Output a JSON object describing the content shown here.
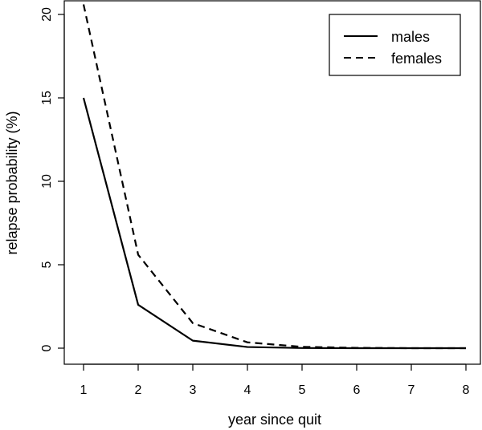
{
  "chart_data": {
    "type": "line",
    "title": "",
    "xlabel": "year since quit",
    "ylabel": "relapse probability (%)",
    "x": [
      1,
      2,
      3,
      4,
      5,
      6,
      7,
      8
    ],
    "xlim": [
      1,
      8
    ],
    "ylim": [
      0,
      20
    ],
    "x_ticks": [
      "1",
      "2",
      "3",
      "4",
      "5",
      "6",
      "7",
      "8"
    ],
    "y_ticks": [
      "0",
      "5",
      "10",
      "15",
      "20"
    ],
    "grid": false,
    "legend_position": "top-right",
    "series": [
      {
        "name": "males",
        "values": [
          15.0,
          2.6,
          0.45,
          0.07,
          0.01,
          0.0,
          0.0,
          0.0
        ],
        "color": "#000000",
        "line_style": "solid"
      },
      {
        "name": "females",
        "values": [
          20.6,
          5.6,
          1.5,
          0.35,
          0.08,
          0.02,
          0.0,
          0.0
        ],
        "color": "#000000",
        "line_style": "dashed"
      }
    ]
  }
}
